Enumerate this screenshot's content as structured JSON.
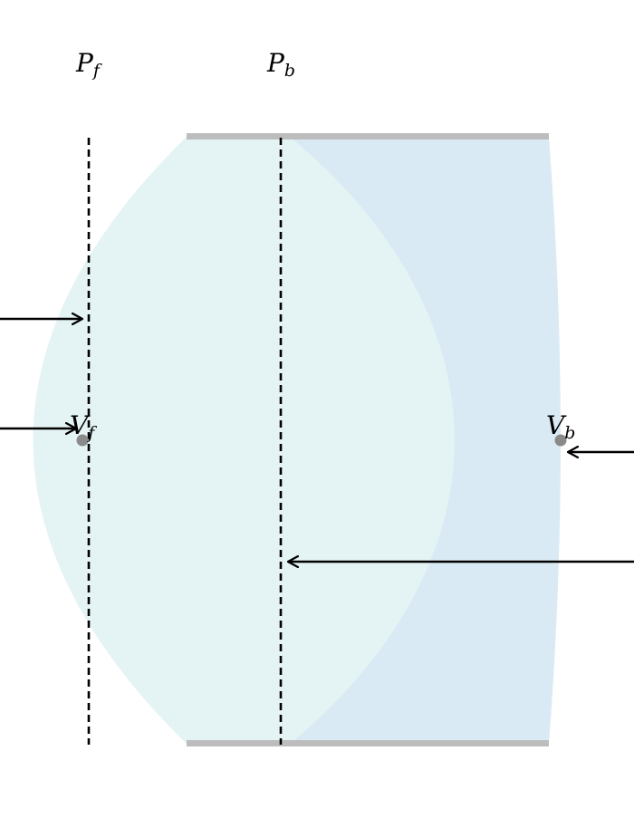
{
  "labels": {
    "pf": {
      "main": "P",
      "sub": "f"
    },
    "pb": {
      "main": "P",
      "sub": "b"
    },
    "vf": {
      "main": "V",
      "sub": "f"
    },
    "vb": {
      "main": "V",
      "sub": "b"
    }
  },
  "colors": {
    "lens_front_region": "#e4f3f3",
    "lens_back_region": "#daeaf4",
    "lens_edge_bar": "#bdbdbd",
    "vertex_dot": "#8a8a8a",
    "line": "#000000",
    "background": "#ffffff"
  }
}
